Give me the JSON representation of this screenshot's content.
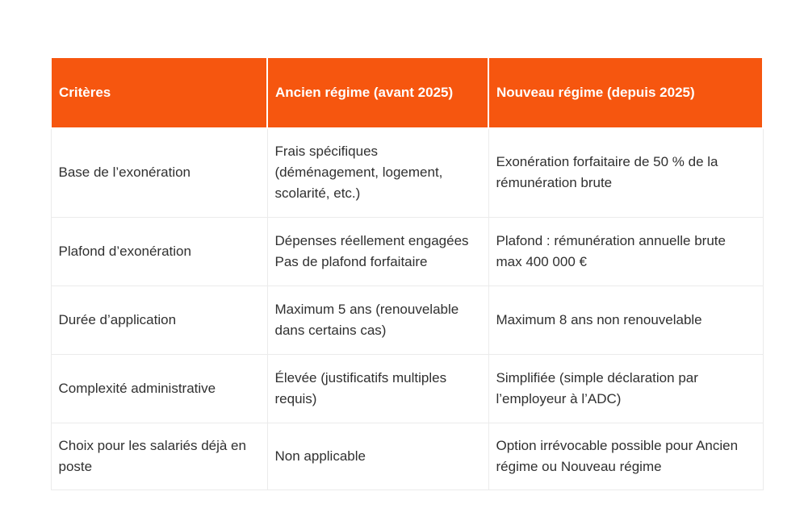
{
  "colors": {
    "header_bg": "#F6560F",
    "header_text": "#FFFFFF",
    "body_text": "#303030",
    "border": "#EBEBEB"
  },
  "table": {
    "headers": [
      "Critères",
      "Ancien régime (avant 2025)",
      "Nouveau régime (depuis 2025)"
    ],
    "rows": [
      {
        "criterion": "Base de l’exonération",
        "ancien": "Frais spécifiques (déménagement, logement, scolarité, etc.)",
        "nouveau": "Exonération forfaitaire de 50 % de la rémunération brute"
      },
      {
        "criterion": "Plafond d’exonération",
        "ancien_lines": [
          "Dépenses réellement engagées",
          "Pas de plafond forfaitaire"
        ],
        "nouveau": "Plafond : rémunération annuelle brute max 400 000 €"
      },
      {
        "criterion": "Durée d’application",
        "ancien": "Maximum 5 ans (renouvelable dans certains cas)",
        "nouveau": "Maximum 8 ans non renouvelable"
      },
      {
        "criterion": "Complexité administrative",
        "ancien": "Élevée (justificatifs multiples requis)",
        "nouveau": "Simplifiée (simple déclaration par l’employeur à l’ADC)"
      },
      {
        "criterion": "Choix pour les salariés déjà en poste",
        "ancien": "Non applicable",
        "nouveau": "Option irrévocable possible pour Ancien régime ou Nouveau régime"
      }
    ]
  }
}
